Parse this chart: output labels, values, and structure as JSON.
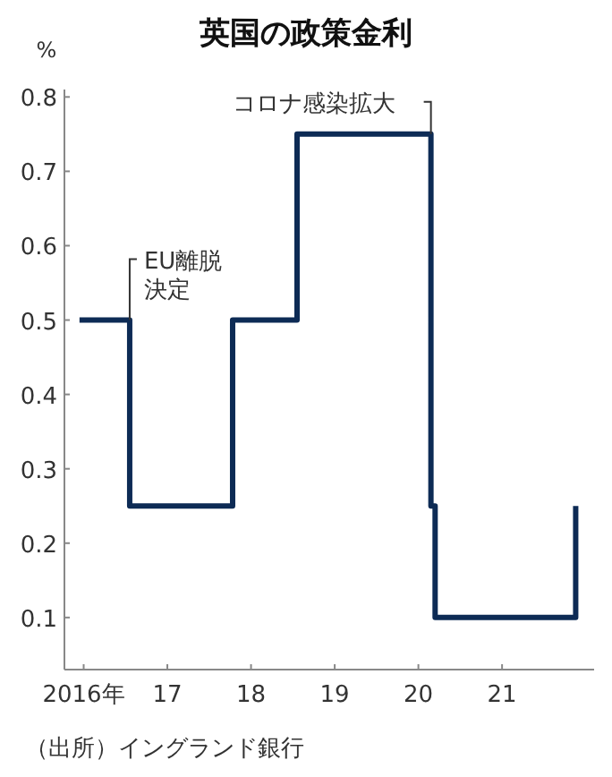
{
  "chart_data": {
    "type": "step",
    "title": "英国の政策金利",
    "ylabel": "%",
    "x": [
      2015.95,
      2016.55,
      2017.78,
      2018.55,
      2020.15,
      2020.2,
      2021.88
    ],
    "series": [
      {
        "color": "#0d2b55",
        "values": [
          0.5,
          0.25,
          0.5,
          0.75,
          0.25,
          0.1,
          0.25
        ]
      }
    ],
    "xlim": [
      2015.77,
      2022.1
    ],
    "xticks": [
      {
        "value": 2016,
        "label": "2016年"
      },
      {
        "value": 2017,
        "label": "17"
      },
      {
        "value": 2018,
        "label": "18"
      },
      {
        "value": 2019,
        "label": "19"
      },
      {
        "value": 2020,
        "label": "20"
      },
      {
        "value": 2021,
        "label": "21"
      }
    ],
    "ylim": [
      0.03,
      0.81
    ],
    "yticks": [
      0.1,
      0.2,
      0.3,
      0.4,
      0.5,
      0.6,
      0.7,
      0.8
    ],
    "annotations": [
      {
        "text": "EU離脱決定",
        "x": 2016.55,
        "y": 0.5
      },
      {
        "text": "コロナ感染拡大",
        "x": 2020.15,
        "y": 0.75
      },
      "（出所）イングランド銀行"
    ]
  }
}
